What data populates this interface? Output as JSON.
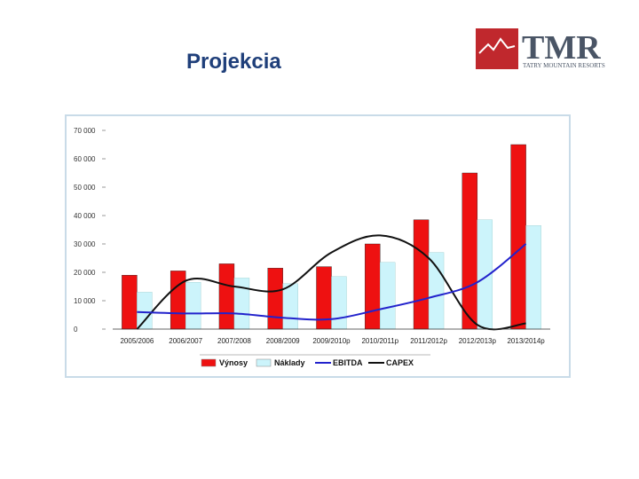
{
  "slide": {
    "title": "Projekcia",
    "logo": {
      "text": "TMR",
      "subtitle": "TATRY MOUNTAIN RESORTS",
      "color_red": "#c0282d",
      "color_text": "#4a5566"
    }
  },
  "chart_data": {
    "type": "bar",
    "categories": [
      "2005/2006",
      "2006/2007",
      "2007/2008",
      "2008/2009",
      "2009/2010p",
      "2010/2011p",
      "2011/2012p",
      "2012/2013p",
      "2013/2014p"
    ],
    "y_ticks": [
      "70 000",
      "60 000",
      "50 000",
      "40 000",
      "30 000",
      "20 000",
      "10 000",
      "0"
    ],
    "ylim": [
      0,
      70000
    ],
    "series": [
      {
        "name": "Výnosy",
        "kind": "bar",
        "color": "#ee1111",
        "values": [
          19000,
          20500,
          23000,
          21500,
          22000,
          30000,
          38500,
          55000,
          65000
        ]
      },
      {
        "name": "Náklady",
        "kind": "bar",
        "color": "#ccf4fb",
        "values": [
          13000,
          16500,
          18000,
          16000,
          18500,
          23500,
          27000,
          38500,
          36500
        ]
      },
      {
        "name": "EBITDA",
        "kind": "line",
        "color": "#2222cc",
        "values": [
          6000,
          5500,
          5500,
          4000,
          3500,
          7000,
          11000,
          16500,
          30000
        ]
      },
      {
        "name": "CAPEX",
        "kind": "line",
        "color": "#111111",
        "values": [
          0,
          17000,
          15000,
          14000,
          27000,
          33000,
          25000,
          1500,
          2000
        ]
      }
    ],
    "legend": {
      "placement": "bottom"
    },
    "grid": false
  }
}
